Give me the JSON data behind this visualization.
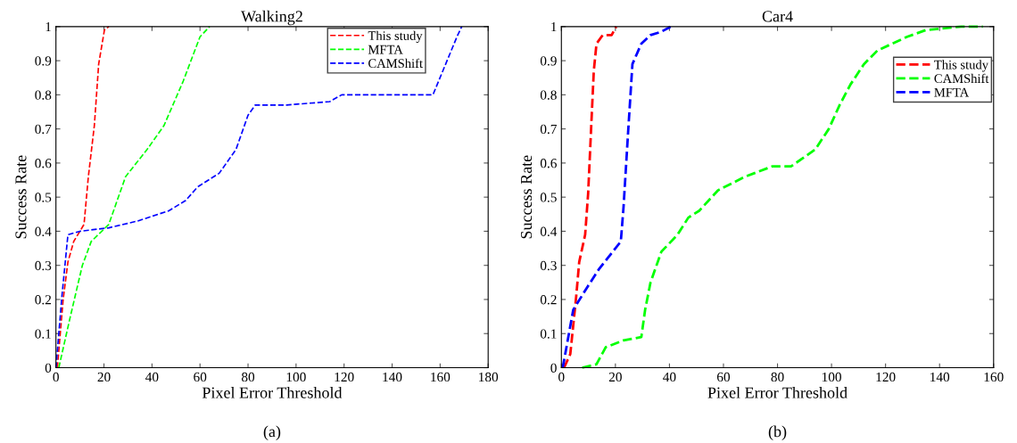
{
  "chart_data": [
    {
      "type": "line",
      "title": "Walking2",
      "xlabel": "Pixel Error Threshold",
      "ylabel": "Success Rate",
      "annotations": [
        "(a)"
      ],
      "line_style": "dashed",
      "legend": "top right",
      "grid": false,
      "xlim": [
        0,
        180
      ],
      "xticks": [
        0,
        20,
        40,
        60,
        80,
        100,
        120,
        140,
        160,
        180
      ],
      "ylim": [
        0,
        1
      ],
      "yticks": [
        0,
        0.1,
        0.2,
        0.3,
        0.4,
        0.5,
        0.6,
        0.7,
        0.8,
        0.9,
        1
      ],
      "series": [
        {
          "name": "This study",
          "color": "#ff0000",
          "x": [
            0.6,
            3,
            5,
            7.4,
            11.7,
            13.5,
            16,
            17.8,
            20.2,
            22
          ],
          "values": [
            0,
            0.2,
            0.31,
            0.37,
            0.42,
            0.56,
            0.71,
            0.89,
            0.99,
            1.0
          ]
        },
        {
          "name": "MFTA",
          "color": "#00ff00",
          "x": [
            1.2,
            6,
            11,
            14.7,
            22,
            29,
            38,
            45,
            53,
            60,
            64
          ],
          "values": [
            0,
            0.15,
            0.3,
            0.37,
            0.42,
            0.56,
            0.64,
            0.71,
            0.84,
            0.97,
            1.0
          ]
        },
        {
          "name": "CAMShift",
          "color": "#0000ff",
          "x": [
            0,
            2.5,
            5,
            10,
            22,
            34,
            47,
            54,
            59,
            68,
            75,
            80,
            83,
            96,
            114,
            119,
            157,
            167,
            169
          ],
          "values": [
            0,
            0.21,
            0.39,
            0.4,
            0.41,
            0.43,
            0.46,
            0.49,
            0.53,
            0.57,
            0.64,
            0.74,
            0.77,
            0.77,
            0.78,
            0.8,
            0.8,
            0.97,
            1.0
          ]
        }
      ]
    },
    {
      "type": "line",
      "title": "Car4",
      "xlabel": "Pixel Error Threshold",
      "ylabel": "Success Rate",
      "annotations": [
        "(b)"
      ],
      "line_style": "dashed",
      "legend": "top right",
      "grid": false,
      "xlim": [
        0,
        160
      ],
      "xticks": [
        0,
        20,
        40,
        60,
        80,
        100,
        120,
        140,
        160
      ],
      "ylim": [
        0,
        1
      ],
      "yticks": [
        0,
        0.1,
        0.2,
        0.3,
        0.4,
        0.5,
        0.6,
        0.7,
        0.8,
        0.9,
        1
      ],
      "series": [
        {
          "name": "This study",
          "color": "#ff0000",
          "x": [
            1,
            3.3,
            5.5,
            6.6,
            8.8,
            9.9,
            11,
            12,
            13,
            15.3,
            18.6,
            20.3
          ],
          "values": [
            0,
            0.04,
            0.21,
            0.31,
            0.39,
            0.51,
            0.7,
            0.87,
            0.95,
            0.975,
            0.975,
            1.0
          ]
        },
        {
          "name": "CAMShift",
          "color": "#00ff00",
          "x": [
            7.7,
            13,
            16.4,
            23,
            29.6,
            31,
            33,
            37,
            43,
            47,
            51,
            58,
            68,
            78,
            85,
            94,
            99,
            103,
            107,
            112,
            117,
            128,
            135,
            148,
            156
          ],
          "values": [
            0,
            0.01,
            0.06,
            0.08,
            0.09,
            0.17,
            0.25,
            0.34,
            0.39,
            0.44,
            0.46,
            0.52,
            0.56,
            0.59,
            0.59,
            0.64,
            0.7,
            0.77,
            0.83,
            0.89,
            0.93,
            0.97,
            0.99,
            1.0,
            1.0
          ]
        },
        {
          "name": "MFTA",
          "color": "#0000ff",
          "x": [
            0.5,
            4.4,
            9.9,
            14,
            22,
            23,
            24.7,
            26.3,
            29.6,
            33,
            37,
            40.5
          ],
          "values": [
            0,
            0.17,
            0.24,
            0.29,
            0.37,
            0.47,
            0.69,
            0.89,
            0.95,
            0.975,
            0.985,
            1.0
          ]
        }
      ]
    }
  ]
}
